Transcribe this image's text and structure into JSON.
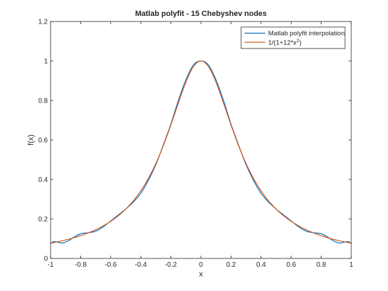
{
  "chart_data": {
    "type": "line",
    "title": "Matlab polyfit - 15 Chebyshev nodes",
    "xlabel": "x",
    "ylabel": "f(x)",
    "xlim": [
      -1,
      1
    ],
    "ylim": [
      0,
      1.2
    ],
    "xticks": [
      "-1",
      "-0.8",
      "-0.6",
      "-0.4",
      "-0.2",
      "0",
      "0.2",
      "0.4",
      "0.6",
      "0.8",
      "1"
    ],
    "xtick_values": [
      -1,
      -0.8,
      -0.6,
      -0.4,
      -0.2,
      0,
      0.2,
      0.4,
      0.6,
      0.8,
      1
    ],
    "yticks": [
      "0",
      "0.2",
      "0.4",
      "0.6",
      "0.8",
      "1",
      "1.2"
    ],
    "ytick_values": [
      0,
      0.2,
      0.4,
      0.6,
      0.8,
      1,
      1.2
    ],
    "grid": false,
    "legend_position": "top-right",
    "series": [
      {
        "name": "Matlab polyfit interpolation",
        "color": "#0072BD",
        "x": [
          -1.0,
          -0.98,
          -0.95,
          -0.92,
          -0.88,
          -0.85,
          -0.8,
          -0.75,
          -0.7,
          -0.65,
          -0.6,
          -0.55,
          -0.5,
          -0.45,
          -0.4,
          -0.35,
          -0.3,
          -0.25,
          -0.2,
          -0.15,
          -0.1,
          -0.05,
          0.0,
          0.05,
          0.1,
          0.15,
          0.2,
          0.25,
          0.3,
          0.35,
          0.4,
          0.45,
          0.5,
          0.55,
          0.6,
          0.65,
          0.7,
          0.75,
          0.8,
          0.85,
          0.88,
          0.92,
          0.95,
          0.98,
          1.0
        ],
        "y": [
          0.075,
          0.085,
          0.082,
          0.078,
          0.09,
          0.105,
          0.125,
          0.13,
          0.138,
          0.16,
          0.19,
          0.22,
          0.25,
          0.285,
          0.33,
          0.395,
          0.475,
          0.575,
          0.68,
          0.8,
          0.905,
          0.98,
          1.0,
          0.98,
          0.905,
          0.8,
          0.68,
          0.575,
          0.475,
          0.395,
          0.33,
          0.285,
          0.25,
          0.22,
          0.19,
          0.16,
          0.138,
          0.13,
          0.125,
          0.105,
          0.09,
          0.078,
          0.082,
          0.085,
          0.075
        ]
      },
      {
        "name": "1/(1+12*x<sup>2</sup>)",
        "color": "#D95319",
        "function": "1/(1+12*x^2)"
      }
    ]
  },
  "legend": {
    "entries": [
      "Matlab polyfit interpolation",
      "1/(1+12*x"
    ],
    "superscript": "2",
    "suffix": ")"
  }
}
